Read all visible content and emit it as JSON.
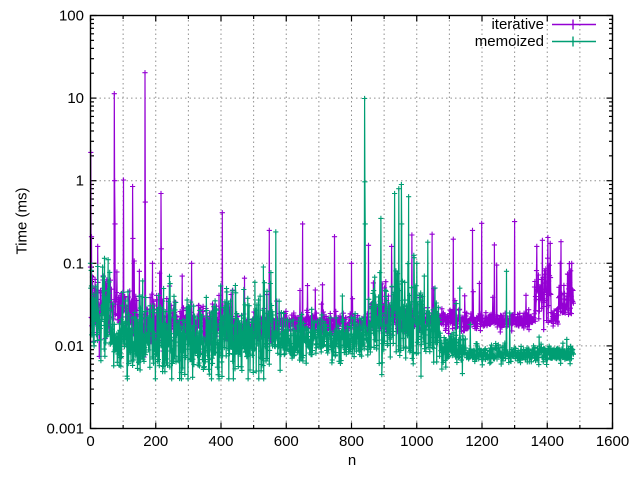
{
  "window": {
    "background": "#ffffff"
  },
  "chart_data": {
    "type": "line",
    "title": "",
    "xlabel": "n",
    "ylabel": "Time (ms)",
    "x_range": [
      0,
      1600
    ],
    "y_range": [
      0.001,
      100
    ],
    "y_scale": "log10",
    "x_tick_step": 200,
    "x_minor_step": 100,
    "x_tick_labels": [
      "0",
      "200",
      "400",
      "600",
      "800",
      "1000",
      "1200",
      "1400",
      "1600"
    ],
    "y_tick_labels": [
      "0.001",
      "0.01",
      "0.1",
      "1",
      "10",
      "100"
    ],
    "grid": {
      "show": true,
      "color": "#909090",
      "style": "dotted"
    },
    "axis_color": "#000000",
    "text_color": "#000000",
    "legend": {
      "position": "top-right-inside",
      "entries": [
        {
          "label": "iterative",
          "color": "#9400d3",
          "marker": "plus"
        },
        {
          "label": "memoized",
          "color": "#009e73",
          "marker": "plus"
        }
      ]
    },
    "series": [
      {
        "name": "iterative",
        "color": "#9400d3",
        "seed": 7,
        "n_max": 1480,
        "burst_factor": [
          1.4,
          2.8
        ],
        "baseline_segments": [
          [
            0,
            8,
            0.03,
            0.25,
            0.15
          ],
          [
            8,
            65,
            0.024,
            0.18,
            0.1
          ],
          [
            65,
            140,
            0.027,
            0.12,
            0.06
          ],
          [
            140,
            230,
            0.017,
            0.15,
            0.08
          ],
          [
            230,
            420,
            0.019,
            0.12,
            0.05
          ],
          [
            420,
            560,
            0.016,
            0.1,
            0.04
          ],
          [
            560,
            860,
            0.019,
            0.06,
            0.02
          ],
          [
            860,
            940,
            0.024,
            0.1,
            0.04
          ],
          [
            940,
            1150,
            0.02,
            0.07,
            0.03
          ],
          [
            1150,
            1360,
            0.02,
            0.05,
            0.02
          ],
          [
            1360,
            1412,
            0.038,
            0.18,
            0.12
          ],
          [
            1412,
            1434,
            0.022,
            0.08,
            0.03
          ],
          [
            1434,
            1481,
            0.036,
            0.12,
            0.05
          ]
        ],
        "spikes": [
          [
            0,
            0.09
          ],
          [
            1,
            2.2
          ],
          [
            3,
            0.21
          ],
          [
            22,
            0.16
          ],
          [
            40,
            0.05
          ],
          [
            73,
            11.3
          ],
          [
            74,
            1.0
          ],
          [
            75,
            0.3
          ],
          [
            101,
            1.02
          ],
          [
            129,
            0.85
          ],
          [
            130,
            0.2
          ],
          [
            150,
            0.08
          ],
          [
            167,
            20.3
          ],
          [
            168,
            0.55
          ],
          [
            190,
            0.1
          ],
          [
            216,
            0.7
          ],
          [
            217,
            0.15
          ],
          [
            281,
            0.07
          ],
          [
            310,
            0.1
          ],
          [
            404,
            0.41
          ],
          [
            472,
            0.066
          ],
          [
            548,
            0.25
          ],
          [
            650,
            0.3
          ],
          [
            748,
            0.21
          ],
          [
            800,
            0.1
          ],
          [
            852,
            0.165
          ],
          [
            923,
            0.16
          ],
          [
            985,
            0.22
          ],
          [
            1047,
            0.225
          ],
          [
            1112,
            0.196
          ],
          [
            1171,
            0.25
          ],
          [
            1199,
            0.305
          ],
          [
            1238,
            0.167
          ],
          [
            1245,
            0.095
          ],
          [
            1300,
            0.32
          ],
          [
            1368,
            0.16
          ],
          [
            1385,
            0.19
          ],
          [
            1402,
            0.205
          ],
          [
            1440,
            0.1
          ],
          [
            1475,
            0.1
          ]
        ]
      },
      {
        "name": "memoized",
        "color": "#009e73",
        "seed": 42,
        "n_max": 1480,
        "burst_factor": [
          1.5,
          3.0
        ],
        "baseline_segments": [
          [
            0,
            4,
            0.07,
            0.3,
            0.2
          ],
          [
            4,
            60,
            0.022,
            0.25,
            0.15
          ],
          [
            60,
            135,
            0.011,
            0.22,
            0.12
          ],
          [
            135,
            260,
            0.011,
            0.25,
            0.15
          ],
          [
            260,
            410,
            0.0105,
            0.22,
            0.12
          ],
          [
            410,
            560,
            0.013,
            0.28,
            0.18
          ],
          [
            560,
            650,
            0.011,
            0.15,
            0.06
          ],
          [
            650,
            860,
            0.012,
            0.12,
            0.05
          ],
          [
            860,
            935,
            0.02,
            0.25,
            0.12
          ],
          [
            935,
            1010,
            0.018,
            0.3,
            0.15
          ],
          [
            1010,
            1070,
            0.015,
            0.2,
            0.1
          ],
          [
            1070,
            1150,
            0.01,
            0.12,
            0.04
          ],
          [
            1150,
            1481,
            0.008,
            0.05,
            0.01
          ]
        ],
        "spikes": [
          [
            0,
            0.1
          ],
          [
            1,
            0.05
          ],
          [
            115,
            0.045
          ],
          [
            150,
            0.04
          ],
          [
            300,
            0.03
          ],
          [
            418,
            0.045
          ],
          [
            445,
            0.044
          ],
          [
            520,
            0.04
          ],
          [
            568,
            0.24
          ],
          [
            840,
            9.9
          ],
          [
            841,
            0.97
          ],
          [
            842,
            0.3
          ],
          [
            890,
            0.35
          ],
          [
            932,
            0.7
          ],
          [
            945,
            0.8
          ],
          [
            953,
            0.9
          ],
          [
            954,
            0.3
          ],
          [
            975,
            0.64
          ],
          [
            1000,
            0.1
          ],
          [
            1034,
            0.18
          ],
          [
            1132,
            0.05
          ],
          [
            1275,
            0.08
          ],
          [
            1285,
            0.025
          ],
          [
            1460,
            0.012
          ]
        ]
      }
    ]
  }
}
